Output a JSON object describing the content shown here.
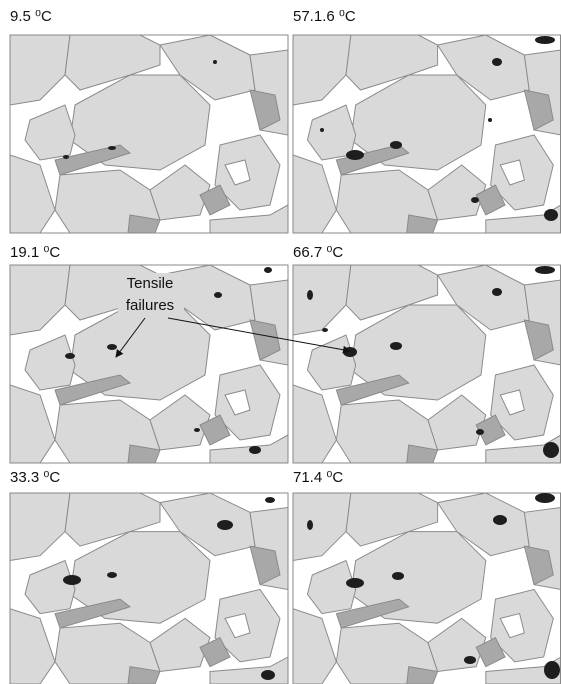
{
  "panels": [
    {
      "label": "9.5 ⁰C"
    },
    {
      "label": "57.1.6 ⁰C"
    },
    {
      "label": "19.1 ⁰C"
    },
    {
      "label": "66.7 ⁰C"
    },
    {
      "label": "33.3 ⁰C"
    },
    {
      "label": "71.4 ⁰C"
    }
  ],
  "annotation": {
    "lines": [
      "Tensile",
      "failures"
    ]
  }
}
